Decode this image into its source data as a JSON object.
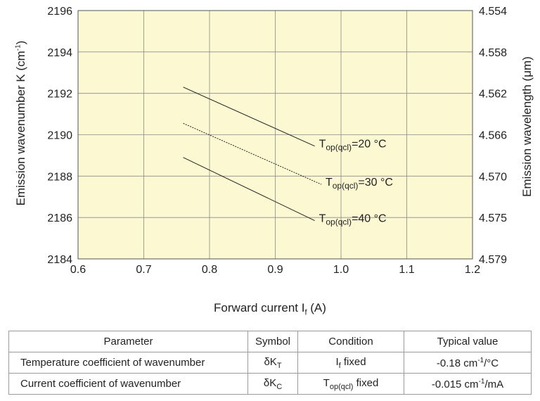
{
  "chart_data": {
    "type": "line",
    "xlabel_main": "Forward current I",
    "xlabel_sub": "f",
    "xlabel_unit": " (A)",
    "ylabel_left_main": "Emission wavenumber K (cm",
    "ylabel_left_sup": "-1",
    "ylabel_left_end": ")",
    "ylabel_right": "Emission wavelength (μm)",
    "xlim": [
      0.6,
      1.2
    ],
    "ylim": [
      2184,
      2196
    ],
    "x_ticks": [
      "0.6",
      "0.7",
      "0.8",
      "0.9",
      "1.0",
      "1.1",
      "1.2"
    ],
    "y_ticks": [
      "2184",
      "2186",
      "2188",
      "2190",
      "2192",
      "2194",
      "2196"
    ],
    "y2_ticks": [
      "4.579",
      "4.575",
      "4.570",
      "4.566",
      "4.562",
      "4.558",
      "4.554"
    ],
    "grid": true,
    "plot_background": "#fcf8d2",
    "series": [
      {
        "name_main": "T",
        "name_sub": "op(qcl)",
        "name_rest": "=20 °C",
        "x": [
          0.76,
          0.96
        ],
        "y": [
          2192.3,
          2189.45
        ],
        "dash": "solid"
      },
      {
        "name_main": "T",
        "name_sub": "op(qcl)",
        "name_rest": "=30 °C",
        "x": [
          0.76,
          0.97
        ],
        "y": [
          2190.55,
          2187.6
        ],
        "dash": "dotted"
      },
      {
        "name_main": "T",
        "name_sub": "op(qcl)",
        "name_rest": "=40 °C",
        "x": [
          0.76,
          0.96
        ],
        "y": [
          2188.9,
          2185.85
        ],
        "dash": "solid"
      }
    ]
  },
  "table": {
    "headers": [
      "Parameter",
      "Symbol",
      "Condition",
      "Typical value"
    ],
    "rows": [
      {
        "parameter": "Temperature coefficient of wavenumber",
        "symbol_main": "δK",
        "symbol_sub": "T",
        "condition_main": "I",
        "condition_sub": "f",
        "condition_rest": " fixed",
        "value_main": "-0.18 cm",
        "value_sup": "-1",
        "value_rest": "/°C"
      },
      {
        "parameter": "Current coefficient of wavenumber",
        "symbol_main": "δK",
        "symbol_sub": "C",
        "condition_main": "T",
        "condition_sub": "op(qcl)",
        "condition_rest": " fixed",
        "value_main": "-0.015 cm",
        "value_sup": "-1",
        "value_rest": "/mA"
      }
    ]
  }
}
